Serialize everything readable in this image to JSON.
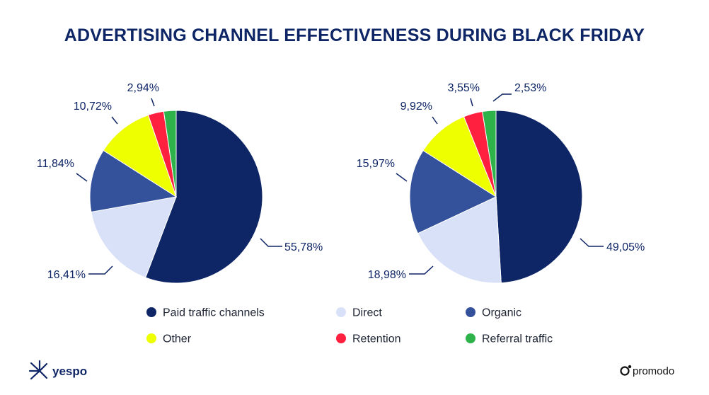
{
  "chart_data": [
    {
      "type": "pie",
      "title": "ADVERTISING CHANNEL EFFECTIVENESS DURING BLACK FRIDAY",
      "categories": [
        "Paid traffic channels",
        "Direct",
        "Organic",
        "Other",
        "Retention",
        "Referral traffic"
      ],
      "values": [
        55.78,
        16.41,
        11.84,
        10.72,
        2.94,
        2.31
      ],
      "labels": [
        "55,78%",
        "16,41%",
        "11,84%",
        "10,72%",
        "2,94%",
        ""
      ]
    },
    {
      "type": "pie",
      "title": "ADVERTISING CHANNEL EFFECTIVENESS DURING BLACK FRIDAY",
      "categories": [
        "Paid traffic channels",
        "Direct",
        "Organic",
        "Other",
        "Retention",
        "Referral traffic"
      ],
      "values": [
        49.05,
        18.98,
        15.97,
        9.92,
        3.55,
        2.53
      ],
      "labels": [
        "49,05%",
        "18,98%",
        "15,97%",
        "9,92%",
        "3,55%",
        "2,53%"
      ]
    }
  ],
  "legend": [
    {
      "label": "Paid traffic channels",
      "color": "#0e2566"
    },
    {
      "label": "Direct",
      "color": "#d8e1f8"
    },
    {
      "label": "Organic",
      "color": "#34529c"
    },
    {
      "label": "Other",
      "color": "#eeff00"
    },
    {
      "label": "Retention",
      "color": "#ff1f3f"
    },
    {
      "label": "Referral traffic",
      "color": "#2db34a"
    }
  ],
  "brands": {
    "left": "yespo",
    "right": "promodo"
  }
}
